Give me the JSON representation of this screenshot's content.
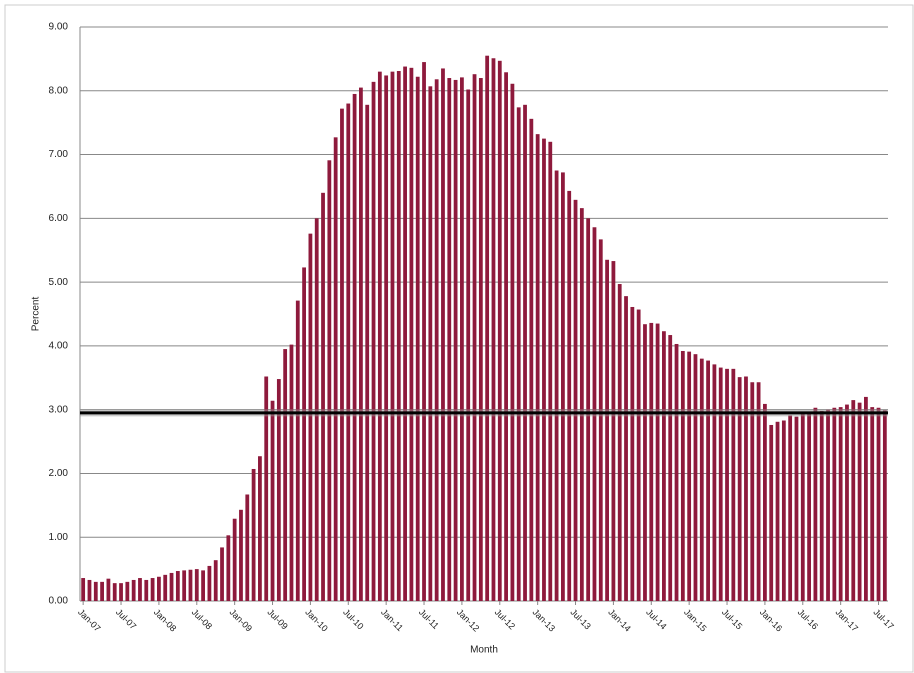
{
  "chart_data": {
    "type": "bar",
    "y_label": "Percent",
    "x_label": "Month",
    "categories": [
      "Jan-07",
      null,
      null,
      null,
      null,
      null,
      "Jul-07",
      null,
      null,
      null,
      null,
      null,
      "Jan-08",
      null,
      null,
      null,
      null,
      null,
      "Jul-08",
      null,
      null,
      null,
      null,
      null,
      "Jan-09",
      null,
      null,
      null,
      null,
      null,
      "Jul-09",
      null,
      null,
      null,
      null,
      null,
      "Jan-10",
      null,
      null,
      null,
      null,
      null,
      "Jul-10",
      null,
      null,
      null,
      null,
      null,
      "Jan-11",
      null,
      null,
      null,
      null,
      null,
      "Jul-11",
      null,
      null,
      null,
      null,
      null,
      "Jan-12",
      null,
      null,
      null,
      null,
      null,
      "Jul-12",
      null,
      null,
      null,
      null,
      null,
      "Jan-13",
      null,
      null,
      null,
      null,
      null,
      "Jul-13",
      null,
      null,
      null,
      null,
      null,
      "Jan-14",
      null,
      null,
      null,
      null,
      null,
      "Jul-14",
      null,
      null,
      null,
      null,
      null,
      "Jan-15",
      null,
      null,
      null,
      null,
      null,
      "Jul-15",
      null,
      null,
      null,
      null,
      null,
      "Jan-16",
      null,
      null,
      null,
      null,
      null,
      "Jul-16",
      null,
      null,
      null,
      null,
      null,
      "Jan-17",
      null,
      null,
      null,
      null,
      null,
      "Jul-17",
      null
    ],
    "values": [
      0.36,
      0.33,
      0.3,
      0.3,
      0.35,
      0.28,
      0.28,
      0.3,
      0.33,
      0.36,
      0.33,
      0.36,
      0.38,
      0.41,
      0.44,
      0.47,
      0.48,
      0.49,
      0.5,
      0.48,
      0.55,
      0.64,
      0.84,
      1.03,
      1.29,
      1.43,
      1.67,
      2.07,
      2.27,
      3.52,
      3.14,
      3.48,
      3.95,
      4.02,
      4.71,
      5.23,
      5.76,
      6.0,
      6.4,
      6.91,
      7.27,
      7.72,
      7.8,
      7.95,
      8.05,
      7.78,
      8.14,
      8.3,
      8.24,
      8.3,
      8.31,
      8.38,
      8.36,
      8.22,
      8.45,
      8.07,
      8.18,
      8.35,
      8.2,
      8.17,
      8.21,
      8.02,
      8.26,
      8.2,
      8.55,
      8.51,
      8.47,
      8.29,
      8.11,
      7.74,
      7.78,
      7.56,
      7.32,
      7.25,
      7.2,
      6.75,
      6.72,
      6.43,
      6.29,
      6.16,
      6.0,
      5.86,
      5.67,
      5.35,
      5.33,
      4.97,
      4.78,
      4.61,
      4.57,
      4.34,
      4.36,
      4.35,
      4.23,
      4.17,
      4.03,
      3.92,
      3.91,
      3.87,
      3.8,
      3.77,
      3.71,
      3.66,
      3.64,
      3.64,
      3.51,
      3.52,
      3.43,
      3.43,
      3.09,
      2.76,
      2.81,
      2.83,
      2.91,
      2.89,
      2.93,
      2.96,
      3.03,
      2.98,
      3.0,
      3.03,
      3.04,
      3.08,
      3.15,
      3.11,
      3.2,
      3.04,
      3.03,
      2.99
    ],
    "color": "#8e1a3c",
    "reference_line": 2.95,
    "ylim": [
      0,
      9
    ],
    "yticks": [
      {
        "value": 0,
        "label": "0.00"
      },
      {
        "value": 1,
        "label": "1.00"
      },
      {
        "value": 2,
        "label": "2.00"
      },
      {
        "value": 3,
        "label": "3.00"
      },
      {
        "value": 4,
        "label": "4.00"
      },
      {
        "value": 5,
        "label": "5.00"
      },
      {
        "value": 6,
        "label": "6.00"
      },
      {
        "value": 7,
        "label": "7.00"
      },
      {
        "value": 8,
        "label": "8.00"
      },
      {
        "value": 9,
        "label": "9.00"
      }
    ],
    "grid": true
  }
}
